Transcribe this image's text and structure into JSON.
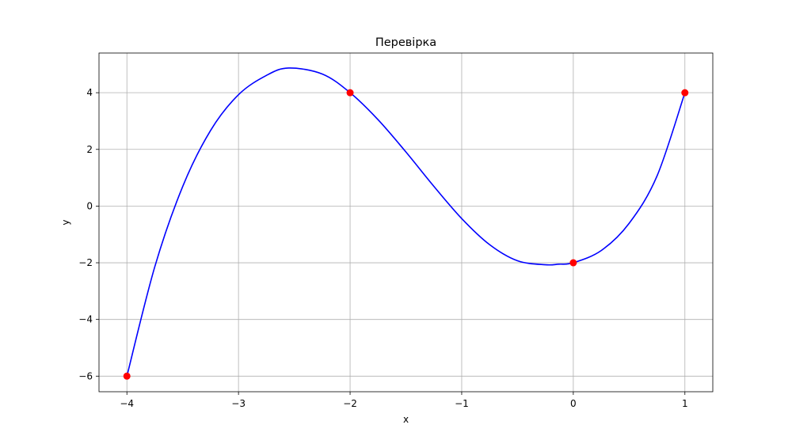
{
  "chart_data": {
    "type": "line",
    "title": "Перевірка",
    "xlabel": "x",
    "ylabel": "y",
    "xlim": [
      -4.25,
      1.25
    ],
    "ylim": [
      -6.55,
      5.4
    ],
    "grid": true,
    "x_ticks": [
      -4,
      -3,
      -2,
      -1,
      0,
      1
    ],
    "x_tick_labels": [
      "−4",
      "−3",
      "−2",
      "−1",
      "0",
      "1"
    ],
    "y_ticks": [
      -6,
      -4,
      -2,
      0,
      2,
      4
    ],
    "y_tick_labels": [
      "−6",
      "−4",
      "−2",
      "0",
      "2",
      "4"
    ],
    "series": [
      {
        "kind": "line",
        "color": "#0000ff",
        "x": [
          -4.0,
          -3.75,
          -3.5,
          -3.25,
          -3.0,
          -2.75,
          -2.55,
          -2.25,
          -2.0,
          -1.75,
          -1.5,
          -1.25,
          -1.0,
          -0.75,
          -0.5,
          -0.25,
          -0.13,
          0.0,
          0.25,
          0.5,
          0.75,
          1.0
        ],
        "y": [
          -6.0,
          -2.14,
          0.69,
          2.67,
          3.93,
          4.61,
          4.87,
          4.66,
          4.0,
          3.05,
          1.91,
          0.7,
          -0.44,
          -1.36,
          -1.93,
          -2.07,
          -2.05,
          -2.0,
          -1.57,
          -0.61,
          1.06,
          4.0
        ]
      },
      {
        "kind": "points",
        "color": "#ff0000",
        "x": [
          -4,
          -2,
          0,
          1
        ],
        "y": [
          -6,
          4,
          -2,
          4
        ]
      }
    ]
  }
}
